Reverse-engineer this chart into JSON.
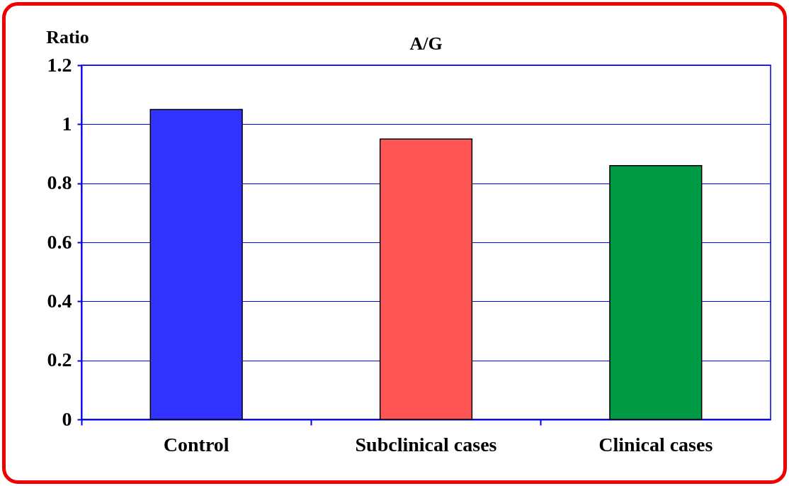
{
  "chart_data": {
    "type": "bar",
    "title": "A/G",
    "ylabel": "Ratio",
    "categories": [
      "Control",
      "Subclinical cases",
      "Clinical cases"
    ],
    "values": [
      1.05,
      0.95,
      0.86
    ],
    "colors": [
      "#3333ff",
      "#ff5555",
      "#009944"
    ],
    "ylim": [
      0,
      1.2
    ],
    "yticks": [
      0,
      0.2,
      0.4,
      0.6,
      0.8,
      1,
      1.2
    ],
    "grid": "y"
  }
}
